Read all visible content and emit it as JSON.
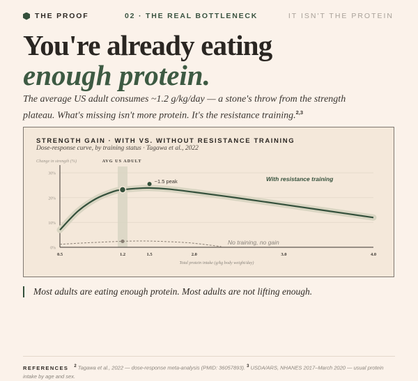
{
  "header": {
    "brand": "THE PROOF",
    "section": "02 · THE REAL BOTTLENECK",
    "tagline": "IT ISN'T THE PROTEIN"
  },
  "headline": {
    "line1": "You're already eating",
    "line2": "enough protein."
  },
  "lede": {
    "text": "The average US adult consumes ~1.2 g/kg/day — a stone's throw from the strength plateau. What's missing isn't more protein. It's the resistance training.",
    "sup": "2,3"
  },
  "chart_card": {
    "title": "STRENGTH GAIN · WITH VS. WITHOUT RESISTANCE TRAINING",
    "subtitle": "Dose-response curve, by training status · Tagawa et al., 2022"
  },
  "chart_data": {
    "type": "line",
    "ylabel": "Change in strength (%)",
    "xlabel": "Total protein intake (g/kg body weight/day)",
    "xlim": [
      0.5,
      4.0
    ],
    "ylim": [
      0,
      32
    ],
    "x_ticks": [
      "0.5",
      "1.2",
      "1.5",
      "2.0",
      "3.0",
      "4.0"
    ],
    "y_ticks": [
      "30%",
      "20%",
      "10%",
      "0%"
    ],
    "grid": true,
    "colors": {
      "trained": "#34503b",
      "band": "#d6d3c0",
      "untrained": "#8a7f74"
    },
    "series": [
      {
        "name": "With resistance training",
        "x": [
          0.5,
          0.7,
          0.9,
          1.1,
          1.2,
          1.4,
          1.5,
          1.7,
          2.0,
          2.5,
          3.0,
          3.5,
          4.0
        ],
        "y": [
          7.0,
          14.5,
          19.5,
          22.5,
          23.2,
          23.8,
          23.9,
          23.5,
          22.2,
          19.8,
          17.2,
          14.6,
          12.0
        ]
      },
      {
        "name": "No training, no gain",
        "x": [
          0.5,
          0.8,
          1.2,
          1.5,
          1.8,
          2.0,
          2.3
        ],
        "y": [
          1.2,
          1.8,
          2.4,
          2.5,
          2.1,
          1.6,
          0.3
        ]
      }
    ],
    "annotations": {
      "avg_band": "AVG US ADULT",
      "avg_x": 1.2,
      "peak_label": "~1.5 peak",
      "peak_x": 1.5,
      "peak_y": 25.5
    }
  },
  "pull_quote": "Most adults are eating enough protein. Most adults are not lifting enough.",
  "references": {
    "label": "REFERENCES",
    "ref2_num": "2",
    "ref2": "Tagawa et al., 2022 — dose-response meta-analysis (PMID: 36057893).",
    "ref3_num": "3",
    "ref3": "USDA/ARS, NHANES 2017–March 2020 — usual protein intake by age and sex."
  }
}
